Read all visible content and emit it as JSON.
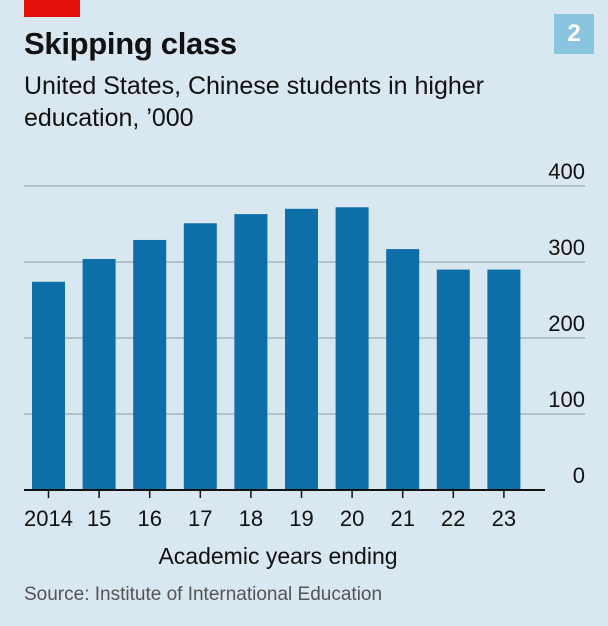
{
  "header": {
    "title": "Skipping class",
    "subtitle": "United States, Chinese students in higher education, ’000",
    "badge": "2",
    "accent_color": "#e3120b",
    "badge_color": "#8ac5e0"
  },
  "chart_data": {
    "type": "bar",
    "categories": [
      "2014",
      "15",
      "16",
      "17",
      "18",
      "19",
      "20",
      "21",
      "22",
      "23"
    ],
    "values": [
      274,
      304,
      329,
      351,
      363,
      370,
      372,
      317,
      290,
      290
    ],
    "xlabel": "Academic years ending",
    "ylabel": "",
    "ylim": [
      0,
      400
    ],
    "yticks": [
      0,
      100,
      200,
      300,
      400
    ],
    "grid": true,
    "bar_color": "#0e6ea8",
    "background": "#d8e7f0"
  },
  "source": "Source: Institute of International Education"
}
